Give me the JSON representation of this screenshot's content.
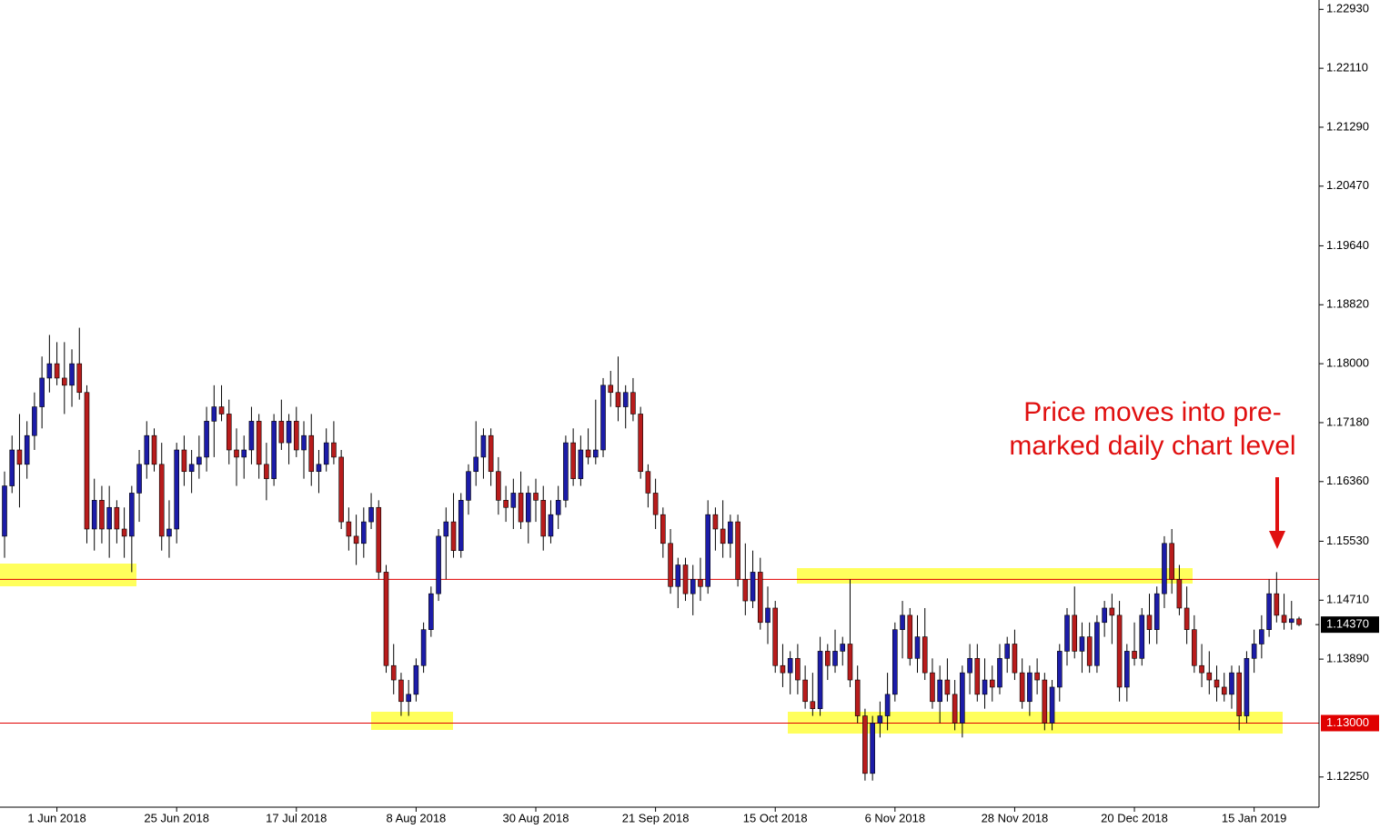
{
  "chart_data": {
    "type": "candlestick",
    "up_color": "#1c1ca8",
    "down_color": "#b81c1c",
    "level_color": "#e00000",
    "ylim": [
      1.1183,
      1.2306
    ],
    "yticks": [
      {
        "value": 1.2293,
        "label": "1.22930"
      },
      {
        "value": 1.2211,
        "label": "1.22110"
      },
      {
        "value": 1.2129,
        "label": "1.21290"
      },
      {
        "value": 1.2047,
        "label": "1.20470"
      },
      {
        "value": 1.1964,
        "label": "1.19640"
      },
      {
        "value": 1.1882,
        "label": "1.18820"
      },
      {
        "value": 1.18,
        "label": "1.18000"
      },
      {
        "value": 1.1718,
        "label": "1.17180"
      },
      {
        "value": 1.1636,
        "label": "1.16360"
      },
      {
        "value": 1.1553,
        "label": "1.15530"
      },
      {
        "value": 1.1471,
        "label": "1.14710"
      },
      {
        "value": 1.1389,
        "label": "1.13890"
      },
      {
        "value": 1.1225,
        "label": "1.12250"
      }
    ],
    "levels": [
      {
        "value": 1.15
      },
      {
        "value": 1.13,
        "label": "1.13000"
      }
    ],
    "current_price": {
      "value": 1.1437,
      "label": "1.14370"
    },
    "annotation": [
      "Price moves into pre-",
      "marked daily chart level"
    ],
    "categories": [
      null,
      null,
      null,
      null,
      null,
      null,
      null,
      "1 Jun 2018",
      null,
      null,
      null,
      null,
      null,
      null,
      null,
      null,
      null,
      null,
      null,
      null,
      null,
      null,
      null,
      "25 Jun 2018",
      null,
      null,
      null,
      null,
      null,
      null,
      null,
      null,
      null,
      null,
      null,
      null,
      null,
      null,
      null,
      "17 Jul 2018",
      null,
      null,
      null,
      null,
      null,
      null,
      null,
      null,
      null,
      null,
      null,
      null,
      null,
      null,
      null,
      "8 Aug 2018",
      null,
      null,
      null,
      null,
      null,
      null,
      null,
      null,
      null,
      null,
      null,
      null,
      null,
      null,
      null,
      "30 Aug 2018",
      null,
      null,
      null,
      null,
      null,
      null,
      null,
      null,
      null,
      null,
      null,
      null,
      null,
      null,
      null,
      "21 Sep 2018",
      null,
      null,
      null,
      null,
      null,
      null,
      null,
      null,
      null,
      null,
      null,
      null,
      null,
      null,
      null,
      "15 Oct 2018",
      null,
      null,
      null,
      null,
      null,
      null,
      null,
      null,
      null,
      null,
      null,
      null,
      null,
      null,
      null,
      "6 Nov 2018",
      null,
      null,
      null,
      null,
      null,
      null,
      null,
      null,
      null,
      null,
      null,
      null,
      null,
      null,
      null,
      "28 Nov 2018",
      null,
      null,
      null,
      null,
      null,
      null,
      null,
      null,
      null,
      null,
      null,
      null,
      null,
      null,
      null,
      "20 Dec 2018",
      null,
      null,
      null,
      null,
      null,
      null,
      null,
      null,
      null,
      null,
      null,
      null,
      null,
      null,
      null,
      "15 Jan 2019",
      null,
      null,
      null,
      null,
      null,
      null
    ],
    "candles": [
      [
        1.156,
        1.165,
        1.153,
        1.163
      ],
      [
        1.163,
        1.17,
        1.162,
        1.168
      ],
      [
        1.168,
        1.173,
        1.16,
        1.166
      ],
      [
        1.166,
        1.172,
        1.164,
        1.17
      ],
      [
        1.17,
        1.176,
        1.168,
        1.174
      ],
      [
        1.174,
        1.181,
        1.171,
        1.178
      ],
      [
        1.178,
        1.184,
        1.176,
        1.18
      ],
      [
        1.18,
        1.183,
        1.177,
        1.178
      ],
      [
        1.178,
        1.183,
        1.173,
        1.177
      ],
      [
        1.177,
        1.182,
        1.174,
        1.18
      ],
      [
        1.18,
        1.185,
        1.175,
        1.176
      ],
      [
        1.176,
        1.177,
        1.155,
        1.157
      ],
      [
        1.157,
        1.164,
        1.154,
        1.161
      ],
      [
        1.161,
        1.163,
        1.155,
        1.157
      ],
      [
        1.157,
        1.163,
        1.153,
        1.16
      ],
      [
        1.16,
        1.161,
        1.155,
        1.157
      ],
      [
        1.157,
        1.16,
        1.153,
        1.156
      ],
      [
        1.156,
        1.163,
        1.151,
        1.162
      ],
      [
        1.162,
        1.168,
        1.158,
        1.166
      ],
      [
        1.166,
        1.172,
        1.164,
        1.17
      ],
      [
        1.17,
        1.171,
        1.165,
        1.166
      ],
      [
        1.166,
        1.169,
        1.154,
        1.156
      ],
      [
        1.156,
        1.161,
        1.153,
        1.157
      ],
      [
        1.157,
        1.169,
        1.155,
        1.168
      ],
      [
        1.168,
        1.17,
        1.163,
        1.165
      ],
      [
        1.165,
        1.168,
        1.162,
        1.166
      ],
      [
        1.166,
        1.17,
        1.164,
        1.167
      ],
      [
        1.167,
        1.174,
        1.165,
        1.172
      ],
      [
        1.172,
        1.177,
        1.167,
        1.174
      ],
      [
        1.174,
        1.177,
        1.172,
        1.173
      ],
      [
        1.173,
        1.175,
        1.166,
        1.168
      ],
      [
        1.168,
        1.171,
        1.163,
        1.167
      ],
      [
        1.167,
        1.17,
        1.164,
        1.168
      ],
      [
        1.168,
        1.174,
        1.166,
        1.172
      ],
      [
        1.172,
        1.173,
        1.164,
        1.166
      ],
      [
        1.166,
        1.169,
        1.161,
        1.164
      ],
      [
        1.164,
        1.173,
        1.163,
        1.172
      ],
      [
        1.172,
        1.175,
        1.168,
        1.169
      ],
      [
        1.169,
        1.173,
        1.166,
        1.172
      ],
      [
        1.172,
        1.174,
        1.167,
        1.168
      ],
      [
        1.168,
        1.172,
        1.164,
        1.17
      ],
      [
        1.17,
        1.173,
        1.163,
        1.165
      ],
      [
        1.165,
        1.168,
        1.162,
        1.166
      ],
      [
        1.166,
        1.171,
        1.165,
        1.169
      ],
      [
        1.169,
        1.172,
        1.166,
        1.167
      ],
      [
        1.167,
        1.168,
        1.157,
        1.158
      ],
      [
        1.158,
        1.16,
        1.154,
        1.156
      ],
      [
        1.156,
        1.159,
        1.152,
        1.155
      ],
      [
        1.155,
        1.16,
        1.153,
        1.158
      ],
      [
        1.158,
        1.162,
        1.157,
        1.16
      ],
      [
        1.16,
        1.161,
        1.15,
        1.151
      ],
      [
        1.151,
        1.152,
        1.137,
        1.138
      ],
      [
        1.138,
        1.141,
        1.134,
        1.136
      ],
      [
        1.136,
        1.137,
        1.131,
        1.133
      ],
      [
        1.133,
        1.136,
        1.131,
        1.134
      ],
      [
        1.134,
        1.139,
        1.133,
        1.138
      ],
      [
        1.138,
        1.144,
        1.137,
        1.143
      ],
      [
        1.143,
        1.149,
        1.142,
        1.148
      ],
      [
        1.148,
        1.157,
        1.147,
        1.156
      ],
      [
        1.156,
        1.16,
        1.15,
        1.158
      ],
      [
        1.158,
        1.162,
        1.153,
        1.154
      ],
      [
        1.154,
        1.162,
        1.153,
        1.161
      ],
      [
        1.161,
        1.166,
        1.159,
        1.165
      ],
      [
        1.165,
        1.172,
        1.163,
        1.167
      ],
      [
        1.167,
        1.171,
        1.164,
        1.17
      ],
      [
        1.17,
        1.171,
        1.163,
        1.165
      ],
      [
        1.165,
        1.167,
        1.159,
        1.161
      ],
      [
        1.161,
        1.163,
        1.158,
        1.16
      ],
      [
        1.16,
        1.164,
        1.157,
        1.162
      ],
      [
        1.162,
        1.165,
        1.157,
        1.158
      ],
      [
        1.158,
        1.163,
        1.155,
        1.162
      ],
      [
        1.162,
        1.164,
        1.158,
        1.161
      ],
      [
        1.161,
        1.163,
        1.154,
        1.156
      ],
      [
        1.156,
        1.161,
        1.155,
        1.159
      ],
      [
        1.159,
        1.163,
        1.157,
        1.161
      ],
      [
        1.161,
        1.17,
        1.16,
        1.169
      ],
      [
        1.169,
        1.171,
        1.163,
        1.164
      ],
      [
        1.164,
        1.17,
        1.163,
        1.168
      ],
      [
        1.168,
        1.171,
        1.166,
        1.167
      ],
      [
        1.167,
        1.175,
        1.166,
        1.168
      ],
      [
        1.168,
        1.178,
        1.167,
        1.177
      ],
      [
        1.177,
        1.179,
        1.174,
        1.176
      ],
      [
        1.176,
        1.181,
        1.172,
        1.174
      ],
      [
        1.174,
        1.177,
        1.171,
        1.176
      ],
      [
        1.176,
        1.178,
        1.172,
        1.173
      ],
      [
        1.173,
        1.174,
        1.164,
        1.165
      ],
      [
        1.165,
        1.166,
        1.16,
        1.162
      ],
      [
        1.162,
        1.164,
        1.157,
        1.159
      ],
      [
        1.159,
        1.16,
        1.153,
        1.155
      ],
      [
        1.155,
        1.157,
        1.148,
        1.149
      ],
      [
        1.149,
        1.153,
        1.146,
        1.152
      ],
      [
        1.152,
        1.153,
        1.147,
        1.148
      ],
      [
        1.148,
        1.152,
        1.145,
        1.15
      ],
      [
        1.15,
        1.153,
        1.147,
        1.149
      ],
      [
        1.149,
        1.161,
        1.148,
        1.159
      ],
      [
        1.159,
        1.16,
        1.154,
        1.157
      ],
      [
        1.157,
        1.161,
        1.153,
        1.155
      ],
      [
        1.155,
        1.159,
        1.153,
        1.158
      ],
      [
        1.158,
        1.159,
        1.149,
        1.15
      ],
      [
        1.15,
        1.155,
        1.145,
        1.147
      ],
      [
        1.147,
        1.154,
        1.146,
        1.151
      ],
      [
        1.151,
        1.153,
        1.143,
        1.144
      ],
      [
        1.144,
        1.149,
        1.141,
        1.146
      ],
      [
        1.146,
        1.147,
        1.137,
        1.138
      ],
      [
        1.138,
        1.141,
        1.135,
        1.137
      ],
      [
        1.137,
        1.14,
        1.134,
        1.139
      ],
      [
        1.139,
        1.141,
        1.134,
        1.136
      ],
      [
        1.136,
        1.138,
        1.132,
        1.133
      ],
      [
        1.133,
        1.137,
        1.131,
        1.132
      ],
      [
        1.132,
        1.142,
        1.131,
        1.14
      ],
      [
        1.14,
        1.141,
        1.136,
        1.138
      ],
      [
        1.138,
        1.143,
        1.137,
        1.14
      ],
      [
        1.14,
        1.142,
        1.138,
        1.141
      ],
      [
        1.141,
        1.15,
        1.135,
        1.136
      ],
      [
        1.136,
        1.138,
        1.13,
        1.131
      ],
      [
        1.131,
        1.132,
        1.122,
        1.123
      ],
      [
        1.123,
        1.131,
        1.122,
        1.13
      ],
      [
        1.13,
        1.133,
        1.128,
        1.131
      ],
      [
        1.131,
        1.137,
        1.129,
        1.134
      ],
      [
        1.134,
        1.144,
        1.133,
        1.143
      ],
      [
        1.143,
        1.147,
        1.139,
        1.145
      ],
      [
        1.145,
        1.146,
        1.138,
        1.139
      ],
      [
        1.139,
        1.145,
        1.137,
        1.142
      ],
      [
        1.142,
        1.146,
        1.136,
        1.137
      ],
      [
        1.137,
        1.139,
        1.132,
        1.133
      ],
      [
        1.133,
        1.138,
        1.13,
        1.136
      ],
      [
        1.136,
        1.139,
        1.133,
        1.134
      ],
      [
        1.134,
        1.136,
        1.129,
        1.13
      ],
      [
        1.13,
        1.138,
        1.128,
        1.137
      ],
      [
        1.137,
        1.141,
        1.134,
        1.139
      ],
      [
        1.139,
        1.141,
        1.133,
        1.134
      ],
      [
        1.134,
        1.139,
        1.132,
        1.136
      ],
      [
        1.136,
        1.138,
        1.133,
        1.135
      ],
      [
        1.135,
        1.141,
        1.134,
        1.139
      ],
      [
        1.139,
        1.142,
        1.137,
        1.141
      ],
      [
        1.141,
        1.143,
        1.136,
        1.137
      ],
      [
        1.137,
        1.139,
        1.132,
        1.133
      ],
      [
        1.133,
        1.138,
        1.131,
        1.137
      ],
      [
        1.137,
        1.139,
        1.134,
        1.136
      ],
      [
        1.136,
        1.137,
        1.129,
        1.13
      ],
      [
        1.13,
        1.136,
        1.129,
        1.135
      ],
      [
        1.135,
        1.141,
        1.133,
        1.14
      ],
      [
        1.14,
        1.146,
        1.138,
        1.145
      ],
      [
        1.145,
        1.149,
        1.139,
        1.14
      ],
      [
        1.14,
        1.144,
        1.137,
        1.142
      ],
      [
        1.142,
        1.144,
        1.137,
        1.138
      ],
      [
        1.138,
        1.145,
        1.137,
        1.144
      ],
      [
        1.144,
        1.147,
        1.142,
        1.146
      ],
      [
        1.146,
        1.148,
        1.141,
        1.145
      ],
      [
        1.145,
        1.147,
        1.133,
        1.135
      ],
      [
        1.135,
        1.141,
        1.133,
        1.14
      ],
      [
        1.14,
        1.144,
        1.138,
        1.139
      ],
      [
        1.139,
        1.146,
        1.138,
        1.145
      ],
      [
        1.145,
        1.148,
        1.141,
        1.143
      ],
      [
        1.143,
        1.149,
        1.141,
        1.148
      ],
      [
        1.148,
        1.156,
        1.146,
        1.155
      ],
      [
        1.155,
        1.157,
        1.148,
        1.15
      ],
      [
        1.15,
        1.152,
        1.145,
        1.146
      ],
      [
        1.146,
        1.149,
        1.141,
        1.143
      ],
      [
        1.143,
        1.145,
        1.137,
        1.138
      ],
      [
        1.138,
        1.141,
        1.135,
        1.137
      ],
      [
        1.137,
        1.14,
        1.134,
        1.136
      ],
      [
        1.136,
        1.138,
        1.133,
        1.135
      ],
      [
        1.135,
        1.137,
        1.133,
        1.134
      ],
      [
        1.134,
        1.138,
        1.132,
        1.137
      ],
      [
        1.137,
        1.138,
        1.129,
        1.131
      ],
      [
        1.131,
        1.14,
        1.13,
        1.139
      ],
      [
        1.139,
        1.143,
        1.137,
        1.141
      ],
      [
        1.141,
        1.145,
        1.139,
        1.143
      ],
      [
        1.143,
        1.15,
        1.142,
        1.148
      ],
      [
        1.148,
        1.151,
        1.144,
        1.145
      ],
      [
        1.145,
        1.148,
        1.143,
        1.144
      ],
      [
        1.144,
        1.147,
        1.143,
        1.1445
      ],
      [
        1.1445,
        1.1448,
        1.1435,
        1.1437
      ]
    ]
  }
}
